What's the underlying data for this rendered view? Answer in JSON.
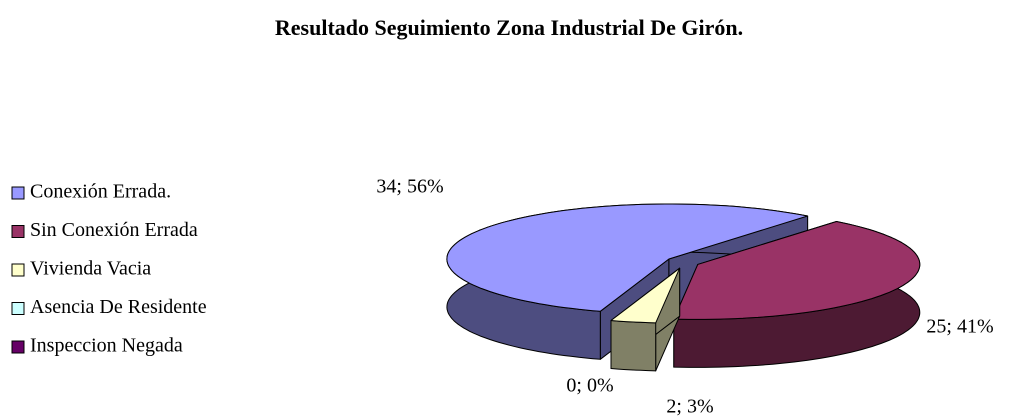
{
  "chart_data": {
    "type": "pie",
    "title": "Resultado Seguimiento Zona Industrial De Girón.",
    "categories": [
      "Conexión Errada.",
      "Sin Conexión Errada",
      "Vivienda Vacia",
      "Asencia De Residente",
      "Inspeccion Negada"
    ],
    "values": [
      34,
      25,
      2,
      0,
      0
    ],
    "value_labels": [
      "34; 56%",
      "25; 41%",
      "2; 3%",
      "0; 0%",
      null
    ],
    "colors": [
      "#9999ff",
      "#993366",
      "#ffffcc",
      "#ccffff",
      "#660066"
    ],
    "legend": "left"
  }
}
